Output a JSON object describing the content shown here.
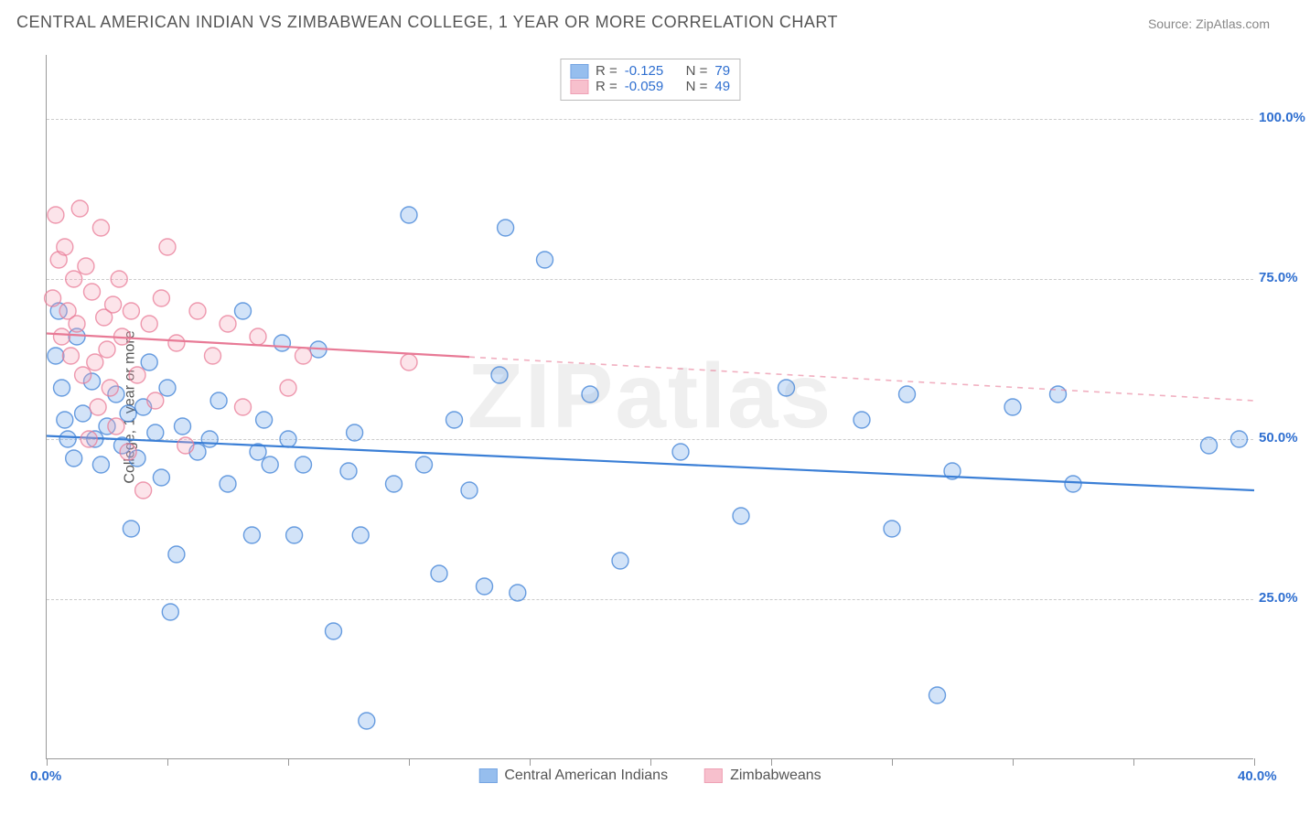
{
  "title": "CENTRAL AMERICAN INDIAN VS ZIMBABWEAN COLLEGE, 1 YEAR OR MORE CORRELATION CHART",
  "source": "Source: ZipAtlas.com",
  "watermark": "ZIPatlas",
  "ylabel": "College, 1 year or more",
  "chart": {
    "type": "scatter",
    "xlim": [
      0,
      40
    ],
    "ylim": [
      0,
      110
    ],
    "xticks": [
      0,
      4,
      8,
      12,
      16,
      20,
      24,
      28,
      32,
      36,
      40
    ],
    "xtick_labels": {
      "0": "0.0%",
      "40": "40.0%"
    },
    "yticks": [
      25,
      50,
      75,
      100
    ],
    "ytick_labels": {
      "25": "25.0%",
      "50": "50.0%",
      "75": "75.0%",
      "100": "100.0%"
    },
    "xtick_color": "#2f6fd0",
    "ytick_color": "#2f6fd0",
    "grid_color": "#cccccc",
    "axis_color": "#999999",
    "background_color": "#ffffff",
    "marker_radius": 9,
    "marker_opacity_fill": 0.3,
    "marker_opacity_stroke": 0.75,
    "marker_stroke_width": 1.4
  },
  "series": [
    {
      "name": "Central American Indians",
      "color": "#6aa3e8",
      "stroke": "#3b7fd6",
      "regression": {
        "x0": 0,
        "y0": 50.5,
        "x1": 40,
        "y1": 42.0,
        "solid_max_x": 40
      },
      "R": "-0.125",
      "N": "79",
      "points": [
        [
          0.3,
          63
        ],
        [
          0.5,
          58
        ],
        [
          0.6,
          53
        ],
        [
          0.7,
          50
        ],
        [
          0.4,
          70
        ],
        [
          0.9,
          47
        ],
        [
          1.0,
          66
        ],
        [
          1.2,
          54
        ],
        [
          1.5,
          59
        ],
        [
          1.6,
          50
        ],
        [
          1.8,
          46
        ],
        [
          2.0,
          52
        ],
        [
          2.3,
          57
        ],
        [
          2.5,
          49
        ],
        [
          2.7,
          54
        ],
        [
          2.8,
          36
        ],
        [
          3.0,
          47
        ],
        [
          3.2,
          55
        ],
        [
          3.4,
          62
        ],
        [
          3.6,
          51
        ],
        [
          3.8,
          44
        ],
        [
          4.0,
          58
        ],
        [
          4.1,
          23
        ],
        [
          4.3,
          32
        ],
        [
          4.5,
          52
        ],
        [
          5.0,
          48
        ],
        [
          5.4,
          50
        ],
        [
          5.7,
          56
        ],
        [
          6.0,
          43
        ],
        [
          6.5,
          70
        ],
        [
          6.8,
          35
        ],
        [
          7.0,
          48
        ],
        [
          7.2,
          53
        ],
        [
          7.4,
          46
        ],
        [
          7.8,
          65
        ],
        [
          8.0,
          50
        ],
        [
          8.2,
          35
        ],
        [
          8.5,
          46
        ],
        [
          9.0,
          64
        ],
        [
          9.5,
          20
        ],
        [
          10.0,
          45
        ],
        [
          10.2,
          51
        ],
        [
          10.4,
          35
        ],
        [
          10.6,
          6
        ],
        [
          11.5,
          43
        ],
        [
          12.0,
          85
        ],
        [
          12.5,
          46
        ],
        [
          13.0,
          29
        ],
        [
          13.5,
          53
        ],
        [
          14.0,
          42
        ],
        [
          14.5,
          27
        ],
        [
          15.0,
          60
        ],
        [
          15.2,
          83
        ],
        [
          15.6,
          26
        ],
        [
          16.5,
          78
        ],
        [
          18.0,
          57
        ],
        [
          19.0,
          31
        ],
        [
          21.0,
          48
        ],
        [
          23.0,
          38
        ],
        [
          24.5,
          58
        ],
        [
          27.0,
          53
        ],
        [
          28.0,
          36
        ],
        [
          28.5,
          57
        ],
        [
          29.5,
          10
        ],
        [
          30.0,
          45
        ],
        [
          32.0,
          55
        ],
        [
          33.5,
          57
        ],
        [
          34.0,
          43
        ],
        [
          38.5,
          49
        ],
        [
          39.5,
          50
        ]
      ]
    },
    {
      "name": "Zimbabweans",
      "color": "#f4a6b8",
      "stroke": "#e87a96",
      "regression": {
        "x0": 0,
        "y0": 66.5,
        "x1": 40,
        "y1": 56.0,
        "solid_max_x": 14
      },
      "R": "-0.059",
      "N": "49",
      "points": [
        [
          0.2,
          72
        ],
        [
          0.3,
          85
        ],
        [
          0.4,
          78
        ],
        [
          0.5,
          66
        ],
        [
          0.6,
          80
        ],
        [
          0.7,
          70
        ],
        [
          0.8,
          63
        ],
        [
          0.9,
          75
        ],
        [
          1.0,
          68
        ],
        [
          1.1,
          86
        ],
        [
          1.2,
          60
        ],
        [
          1.3,
          77
        ],
        [
          1.4,
          50
        ],
        [
          1.5,
          73
        ],
        [
          1.6,
          62
        ],
        [
          1.7,
          55
        ],
        [
          1.8,
          83
        ],
        [
          1.9,
          69
        ],
        [
          2.0,
          64
        ],
        [
          2.1,
          58
        ],
        [
          2.2,
          71
        ],
        [
          2.3,
          52
        ],
        [
          2.4,
          75
        ],
        [
          2.5,
          66
        ],
        [
          2.7,
          48
        ],
        [
          2.8,
          70
        ],
        [
          3.0,
          60
        ],
        [
          3.2,
          42
        ],
        [
          3.4,
          68
        ],
        [
          3.6,
          56
        ],
        [
          3.8,
          72
        ],
        [
          4.0,
          80
        ],
        [
          4.3,
          65
        ],
        [
          4.6,
          49
        ],
        [
          5.0,
          70
        ],
        [
          5.5,
          63
        ],
        [
          6.0,
          68
        ],
        [
          6.5,
          55
        ],
        [
          7.0,
          66
        ],
        [
          8.0,
          58
        ],
        [
          8.5,
          63
        ],
        [
          12.0,
          62
        ]
      ]
    }
  ],
  "corr_box": {
    "label_R": "R =",
    "label_N": "N =",
    "value_color": "#2f6fd0"
  },
  "legend": {
    "items": [
      "Central American Indians",
      "Zimbabweans"
    ]
  }
}
